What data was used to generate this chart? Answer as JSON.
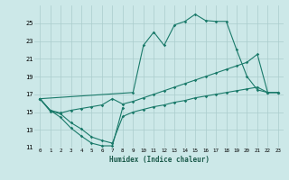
{
  "bg_color": "#cce8e8",
  "grid_color": "#aacccc",
  "line_color": "#1a7a6a",
  "xlabel": "Humidex (Indice chaleur)",
  "xlim": [
    -0.5,
    23.5
  ],
  "ylim": [
    11,
    27
  ],
  "yticks": [
    11,
    13,
    15,
    17,
    19,
    21,
    23,
    25
  ],
  "xticks": [
    0,
    1,
    2,
    3,
    4,
    5,
    6,
    7,
    8,
    9,
    10,
    11,
    12,
    13,
    14,
    15,
    16,
    17,
    18,
    19,
    20,
    21,
    22,
    23
  ],
  "lines": [
    {
      "x": [
        0,
        1,
        2,
        3,
        4,
        5,
        6,
        7,
        8
      ],
      "y": [
        16.5,
        15.2,
        14.4,
        13.2,
        12.3,
        11.5,
        11.2,
        11.2,
        15.5
      ]
    },
    {
      "x": [
        0,
        9,
        10,
        11,
        12,
        13,
        14,
        15,
        16,
        17,
        18,
        19,
        20,
        21,
        22,
        23
      ],
      "y": [
        16.5,
        17.2,
        22.5,
        24.0,
        22.5,
        24.8,
        25.2,
        26.0,
        25.3,
        25.2,
        25.2,
        22.0,
        19.0,
        17.5,
        17.2,
        17.2
      ]
    },
    {
      "x": [
        0,
        1,
        2,
        3,
        4,
        5,
        6,
        7,
        8,
        9,
        10,
        11,
        12,
        13,
        14,
        15,
        16,
        17,
        18,
        19,
        20,
        21,
        22,
        23
      ],
      "y": [
        16.5,
        15.2,
        14.9,
        15.2,
        15.4,
        15.6,
        15.8,
        16.5,
        15.9,
        16.2,
        16.6,
        17.0,
        17.4,
        17.8,
        18.2,
        18.6,
        19.0,
        19.4,
        19.8,
        20.2,
        20.6,
        21.5,
        17.2,
        17.2
      ]
    },
    {
      "x": [
        0,
        1,
        2,
        3,
        4,
        5,
        6,
        7,
        8,
        9,
        10,
        11,
        12,
        13,
        14,
        15,
        16,
        17,
        18,
        19,
        20,
        21,
        22,
        23
      ],
      "y": [
        16.5,
        15.1,
        14.8,
        13.8,
        13.1,
        12.2,
        11.8,
        11.5,
        14.5,
        15.0,
        15.3,
        15.6,
        15.8,
        16.1,
        16.3,
        16.6,
        16.8,
        17.0,
        17.2,
        17.4,
        17.6,
        17.8,
        17.2,
        17.2
      ]
    }
  ]
}
